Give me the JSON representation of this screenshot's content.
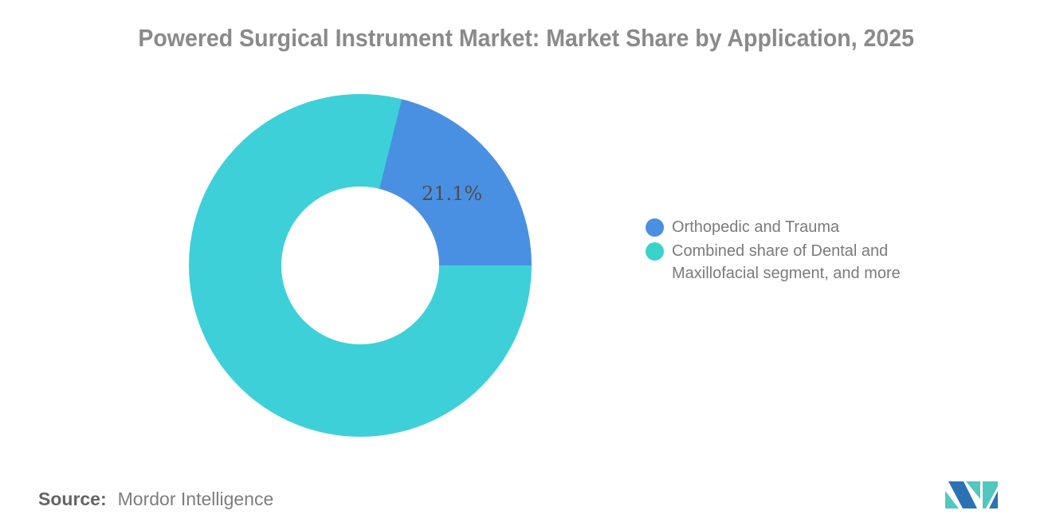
{
  "title": "Powered Surgical Instrument Market: Market Share by Application, 2025",
  "chart_data": {
    "type": "pie",
    "subtype": "donut",
    "title": "Powered Surgical Instrument Market: Market Share by Application, 2025",
    "series": [
      {
        "name": "Orthopedic and Trauma",
        "value": 21.1,
        "color": "#4a90e2",
        "data_label": "21.1%"
      },
      {
        "name": "Combined share of Dental and Maxillofacial segment, and more",
        "value": 78.9,
        "color": "#3ed0d8",
        "data_label": ""
      }
    ],
    "rotation_note": "blue slice spans from 14deg to 90deg clockwise from 12 o'clock",
    "inner_radius_ratio": 0.46,
    "legend_position": "right",
    "grid": false
  },
  "legend": {
    "items": [
      {
        "label": "Orthopedic and Trauma",
        "color": "#4a90e2"
      },
      {
        "label": "Combined share of Dental and Maxillofacial segment, and more",
        "label_lines": [
          "Combined share of Dental and",
          "Maxillofacial segment, and more"
        ],
        "color": "#3ad3cc"
      }
    ]
  },
  "source": {
    "label": "Source:",
    "value": "Mordor Intelligence"
  },
  "logo": {
    "name": "Mordor Intelligence logo",
    "teal": "#53c6c0",
    "blue": "#2b72b4"
  }
}
